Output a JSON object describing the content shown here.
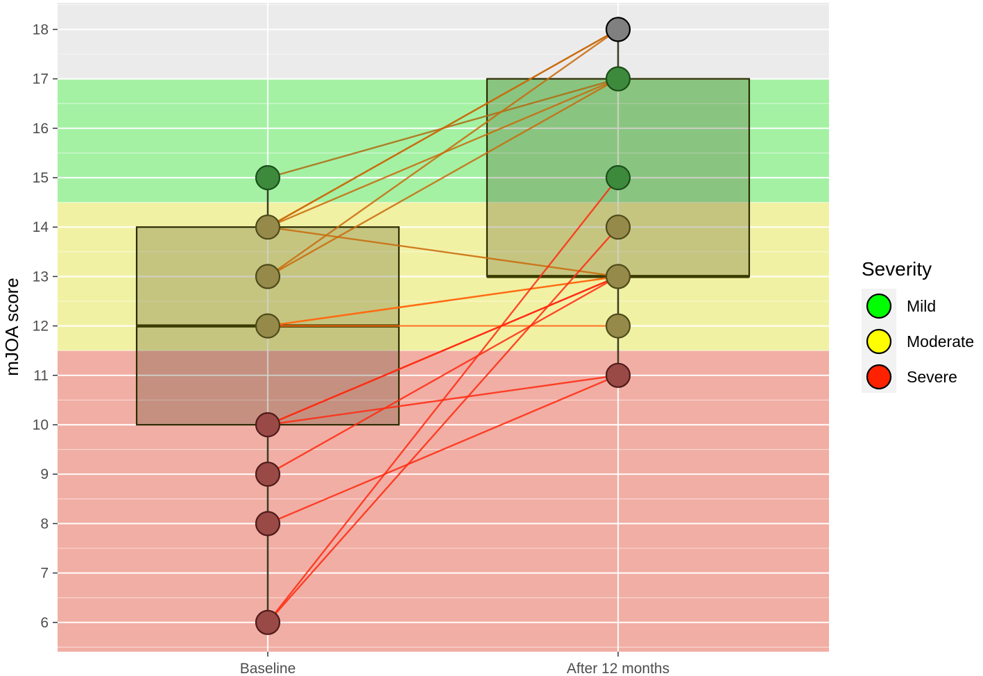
{
  "chart_data": {
    "type": "boxplot",
    "categories": [
      "Baseline",
      "After 12 months"
    ],
    "ylabel": "mJOA score",
    "xlabel": "",
    "ylim": [
      5.3,
      18.5
    ],
    "yticks": [
      6,
      7,
      8,
      9,
      10,
      11,
      12,
      13,
      14,
      15,
      16,
      17,
      18
    ],
    "grid": true,
    "severity_bands": [
      {
        "name": "Mild",
        "from": 14.5,
        "to": 17,
        "color": "#00ff00"
      },
      {
        "name": "Moderate",
        "from": 11.5,
        "to": 14.5,
        "color": "#ffff00"
      },
      {
        "name": "Severe",
        "from": 5.3,
        "to": 11.5,
        "color": "#ff2200"
      }
    ],
    "boxes": [
      {
        "category": "Baseline",
        "q1": 10,
        "median": 12,
        "q3": 14,
        "whisker_low": 6,
        "whisker_high": 15
      },
      {
        "category": "After 12 months",
        "q1": 13,
        "median": 13,
        "q3": 17,
        "whisker_low": 11,
        "whisker_high": 18
      }
    ],
    "points": {
      "Baseline": [
        15,
        14,
        13,
        12,
        10,
        9,
        8,
        6
      ],
      "After 12 months": [
        18,
        17,
        15,
        14,
        13,
        12,
        11
      ]
    },
    "pairs": [
      [
        15,
        17
      ],
      [
        14,
        18
      ],
      [
        14,
        18
      ],
      [
        14,
        17
      ],
      [
        14,
        13
      ],
      [
        13,
        18
      ],
      [
        13,
        17
      ],
      [
        12,
        13
      ],
      [
        12,
        13
      ],
      [
        12,
        12
      ],
      [
        10,
        11
      ],
      [
        10,
        13
      ],
      [
        10,
        13
      ],
      [
        9,
        13
      ],
      [
        8,
        11
      ],
      [
        6,
        15
      ],
      [
        6,
        14
      ]
    ],
    "legend": {
      "title": "Severity",
      "position": "right",
      "items": [
        {
          "label": "Mild",
          "color": "#00ff00"
        },
        {
          "label": "Moderate",
          "color": "#ffff00"
        },
        {
          "label": "Severe",
          "color": "#ff2200"
        }
      ]
    }
  }
}
